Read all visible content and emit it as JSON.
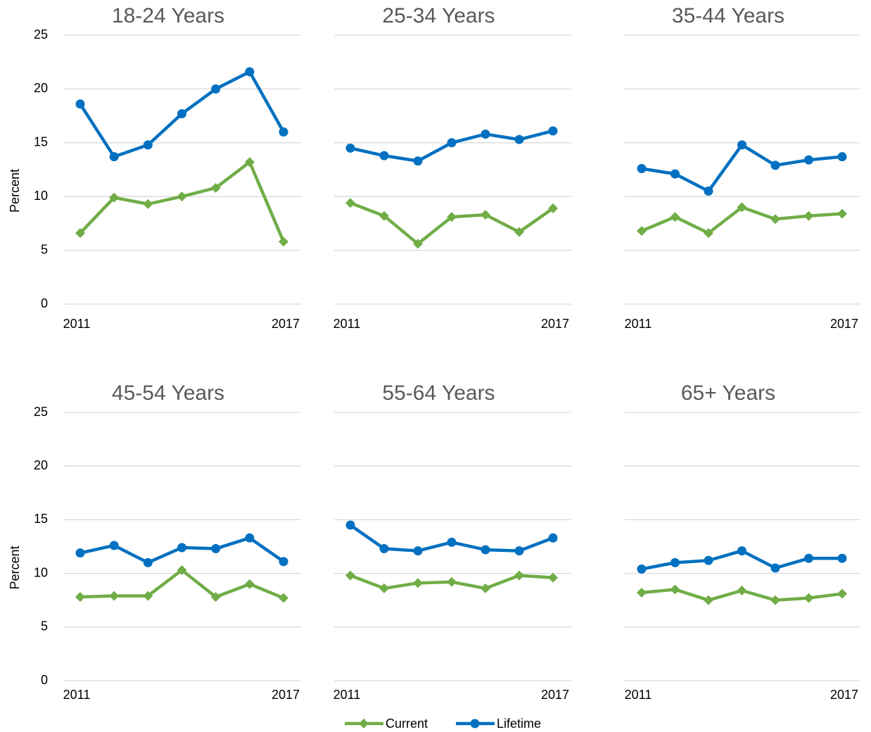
{
  "chart_data": [
    {
      "type": "line",
      "title": "18-24 Years",
      "ylabel": "Percent",
      "categories": [
        "2011",
        null,
        null,
        null,
        null,
        null,
        "2017"
      ],
      "series": [
        {
          "name": "Current",
          "color": "#70ad47",
          "marker": "diamond",
          "values": [
            6.6,
            9.9,
            9.3,
            10.0,
            10.8,
            13.2,
            5.8
          ]
        },
        {
          "name": "Lifetime",
          "color": "#0070c0",
          "marker": "circle",
          "values": [
            18.6,
            13.7,
            14.8,
            17.7,
            20.0,
            21.6,
            16.0
          ]
        }
      ],
      "ylim": [
        0,
        25
      ],
      "yticks": [
        0,
        5,
        10,
        15,
        20,
        25
      ],
      "grid": true
    },
    {
      "type": "line",
      "title": "25-34 Years",
      "categories": [
        "2011",
        null,
        null,
        null,
        null,
        null,
        "2017"
      ],
      "series": [
        {
          "name": "Current",
          "color": "#70ad47",
          "marker": "diamond",
          "values": [
            9.4,
            8.2,
            5.6,
            8.1,
            8.3,
            6.7,
            8.9
          ]
        },
        {
          "name": "Lifetime",
          "color": "#0070c0",
          "marker": "circle",
          "values": [
            14.5,
            13.8,
            13.3,
            15.0,
            15.8,
            15.3,
            16.1
          ]
        }
      ],
      "ylim": [
        0,
        25
      ],
      "yticks": [
        0,
        5,
        10,
        15,
        20,
        25
      ],
      "grid": true
    },
    {
      "type": "line",
      "title": "35-44 Years",
      "categories": [
        "2011",
        null,
        null,
        null,
        null,
        null,
        "2017"
      ],
      "series": [
        {
          "name": "Current",
          "color": "#70ad47",
          "marker": "diamond",
          "values": [
            6.8,
            8.1,
            6.6,
            9.0,
            7.9,
            8.2,
            8.4
          ]
        },
        {
          "name": "Lifetime",
          "color": "#0070c0",
          "marker": "circle",
          "values": [
            12.6,
            12.1,
            10.5,
            14.8,
            12.9,
            13.4,
            13.7
          ]
        }
      ],
      "ylim": [
        0,
        25
      ],
      "yticks": [
        0,
        5,
        10,
        15,
        20,
        25
      ],
      "grid": true
    },
    {
      "type": "line",
      "title": "45-54 Years",
      "ylabel": "Percent",
      "categories": [
        "2011",
        null,
        null,
        null,
        null,
        null,
        "2017"
      ],
      "series": [
        {
          "name": "Current",
          "color": "#70ad47",
          "marker": "diamond",
          "values": [
            7.8,
            7.9,
            7.9,
            10.3,
            7.8,
            9.0,
            7.7
          ]
        },
        {
          "name": "Lifetime",
          "color": "#0070c0",
          "marker": "circle",
          "values": [
            11.9,
            12.6,
            11.0,
            12.4,
            12.3,
            13.3,
            11.1
          ]
        }
      ],
      "ylim": [
        0,
        25
      ],
      "yticks": [
        0,
        5,
        10,
        15,
        20,
        25
      ],
      "grid": true
    },
    {
      "type": "line",
      "title": "55-64 Years",
      "categories": [
        "2011",
        null,
        null,
        null,
        null,
        null,
        "2017"
      ],
      "series": [
        {
          "name": "Current",
          "color": "#70ad47",
          "marker": "diamond",
          "values": [
            9.8,
            8.6,
            9.1,
            9.2,
            8.6,
            9.8,
            9.6
          ]
        },
        {
          "name": "Lifetime",
          "color": "#0070c0",
          "marker": "circle",
          "values": [
            14.5,
            12.3,
            12.1,
            12.9,
            12.2,
            12.1,
            13.3
          ]
        }
      ],
      "ylim": [
        0,
        25
      ],
      "yticks": [
        0,
        5,
        10,
        15,
        20,
        25
      ],
      "grid": true
    },
    {
      "type": "line",
      "title": "65+ Years",
      "categories": [
        "2011",
        null,
        null,
        null,
        null,
        null,
        "2017"
      ],
      "series": [
        {
          "name": "Current",
          "color": "#70ad47",
          "marker": "diamond",
          "values": [
            8.2,
            8.5,
            7.5,
            8.4,
            7.5,
            7.7,
            8.1
          ]
        },
        {
          "name": "Lifetime",
          "color": "#0070c0",
          "marker": "circle",
          "values": [
            10.4,
            11.0,
            11.2,
            12.1,
            10.5,
            11.4,
            11.4
          ]
        }
      ],
      "ylim": [
        0,
        25
      ],
      "yticks": [
        0,
        5,
        10,
        15,
        20,
        25
      ],
      "grid": true
    }
  ]
}
